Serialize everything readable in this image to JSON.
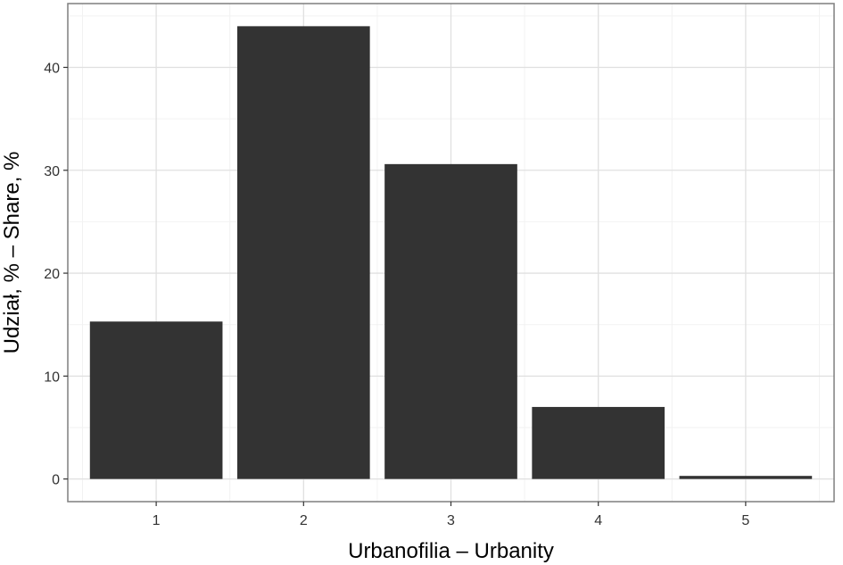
{
  "chart_data": {
    "type": "bar",
    "categories": [
      "1",
      "2",
      "3",
      "4",
      "5"
    ],
    "values": [
      15.3,
      44.0,
      30.6,
      7.0,
      0.3
    ],
    "xlabel": "Urbanofilia – Urbanity",
    "ylabel": "Udział, % – Share, %",
    "ylim": [
      -2.2,
      46.2
    ],
    "yticks": [
      0,
      10,
      20,
      30,
      40
    ],
    "grid": true,
    "colors": {
      "bar": "#333333",
      "grid_major": "#e0e0e0",
      "grid_minor": "#f2f2f2",
      "panel_border": "#7f7f7f",
      "background": "#ffffff"
    }
  }
}
